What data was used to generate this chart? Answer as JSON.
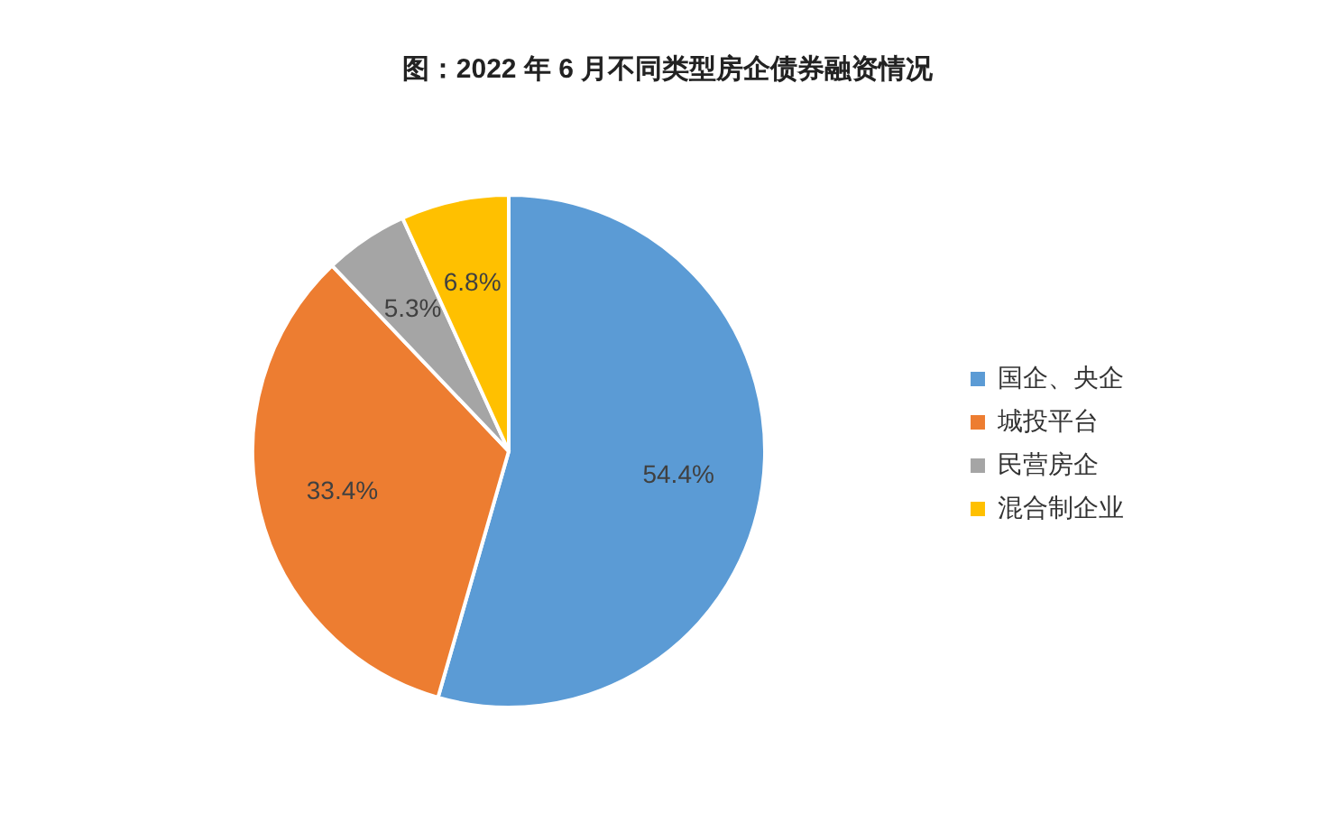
{
  "chart_data": {
    "type": "pie",
    "title": "图：2022 年 6 月不同类型房企债券融资情况",
    "categories": [
      "国企、央企",
      "城投平台",
      "民营房企",
      "混合制企业"
    ],
    "values": [
      54.4,
      33.4,
      5.3,
      6.8
    ],
    "value_labels": [
      "54.4%",
      "33.4%",
      "5.3%",
      "6.8%"
    ],
    "colors": [
      "#5b9bd5",
      "#ed7d31",
      "#a5a5a5",
      "#ffc000"
    ],
    "legend": "right"
  }
}
